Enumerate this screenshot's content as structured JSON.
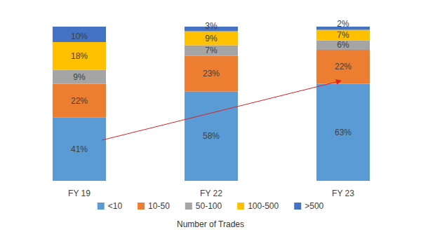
{
  "chart_data": {
    "type": "bar",
    "stacked": true,
    "data_labels": true,
    "tick_labels": "x",
    "grid": false,
    "legend": "bottom",
    "xlabel": "Number of Trades",
    "categories": [
      "FY 19",
      "FY 22",
      "FY 23"
    ],
    "ylim": [
      0,
      100
    ],
    "series": [
      {
        "name": "<10",
        "color": "#5b9bd5",
        "values": [
          41,
          58,
          63
        ],
        "value_labels": [
          "41%",
          "58%",
          "63%"
        ]
      },
      {
        "name": "10-50",
        "color": "#ed7d31",
        "values": [
          22,
          23,
          22
        ],
        "value_labels": [
          "22%",
          "23%",
          "22%"
        ]
      },
      {
        "name": "50-100",
        "color": "#a5a5a5",
        "values": [
          9,
          7,
          6
        ],
        "value_labels": [
          "9%",
          "7%",
          "6%"
        ]
      },
      {
        "name": "100-500",
        "color": "#ffc000",
        "values": [
          18,
          9,
          7
        ],
        "value_labels": [
          "18%",
          "9%",
          "7%"
        ]
      },
      {
        "name": ">500",
        "color": "#4472c4",
        "values": [
          10,
          3,
          2
        ],
        "value_labels": [
          "10%",
          "3%",
          "2%"
        ]
      }
    ]
  }
}
